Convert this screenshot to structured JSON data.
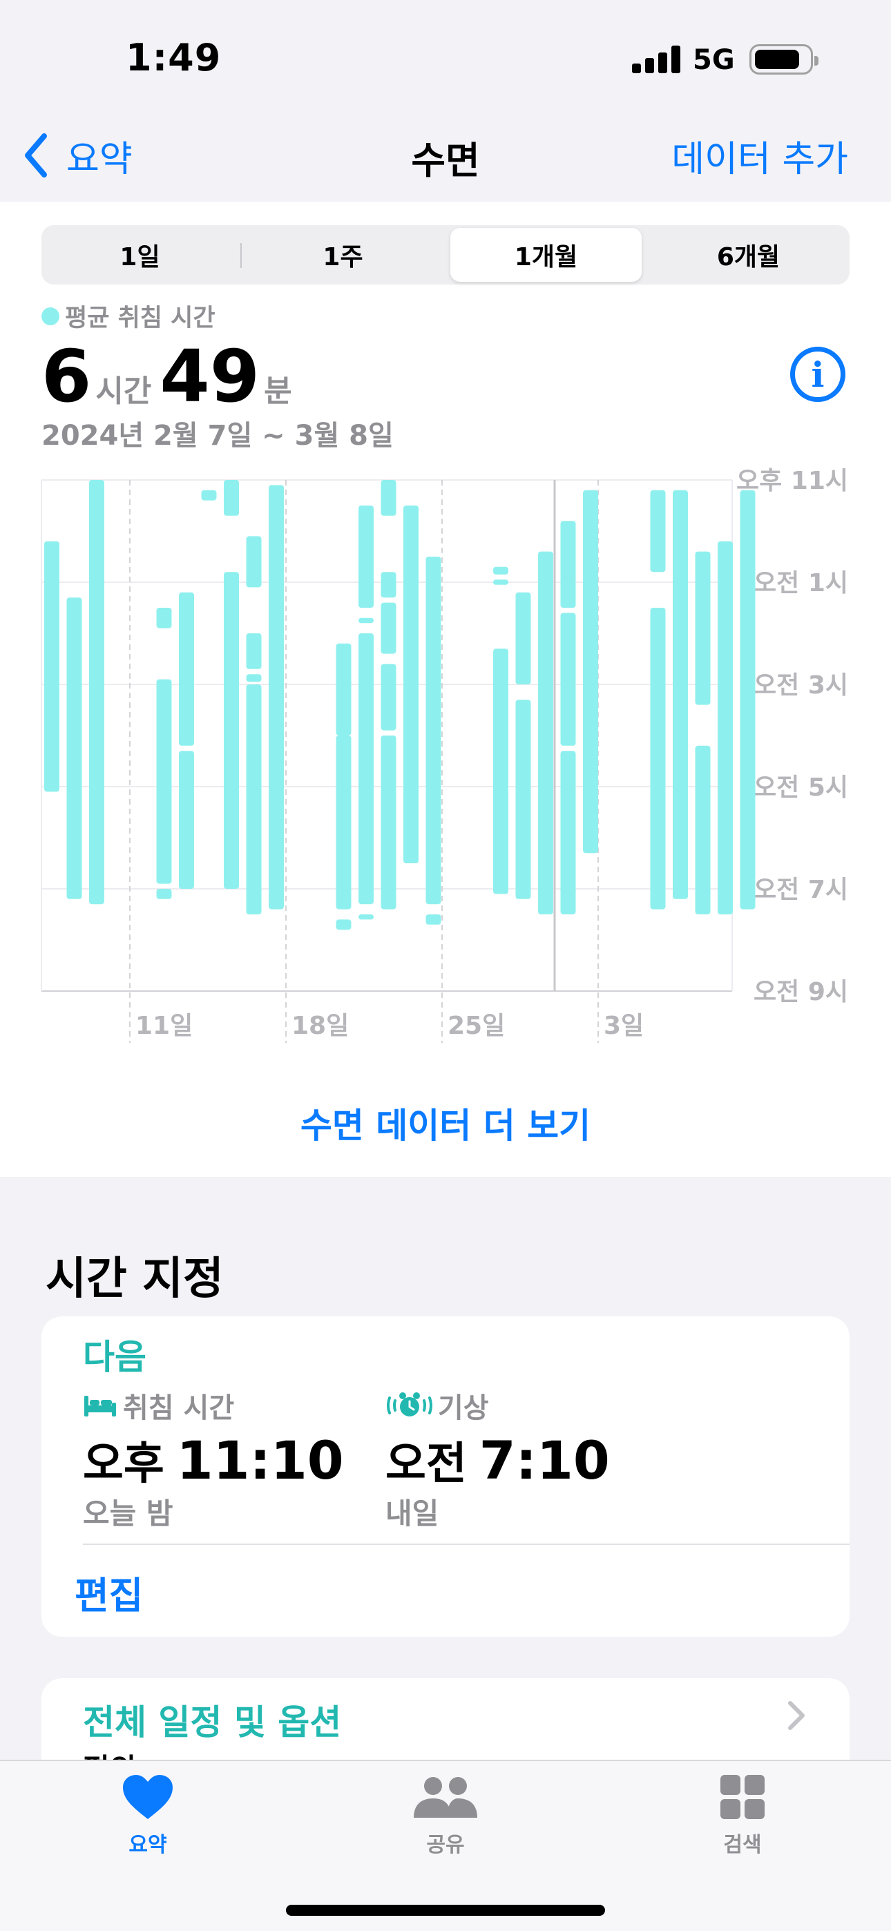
{
  "status_bar": {
    "time": "1:49",
    "network": "5G"
  },
  "nav": {
    "back_label": "요약",
    "title": "수면",
    "add_label": "데이터 추가"
  },
  "segments": [
    "1일",
    "1주",
    "1개월",
    "6개월"
  ],
  "selected_segment": "1개월",
  "summary": {
    "legend": "평균 취침 시간",
    "hours": "6",
    "hours_unit": "시간",
    "minutes": "49",
    "minutes_unit": "분",
    "date_range": "2024년 2월 7일 ~ 3월 8일"
  },
  "colors": {
    "accent": "#0a7aff",
    "sleep_bar": "#8ef0ee",
    "teal_text": "#22b8b0"
  },
  "chart_data": {
    "type": "bar",
    "title": "",
    "y_axis_labels": [
      "오후 11시",
      "오전 1시",
      "오전 3시",
      "오전 5시",
      "오전 7시",
      "오전 9시"
    ],
    "x_tick_labels": [
      "11일",
      "18일",
      "25일",
      "3일"
    ],
    "ylim": [
      "오후 11시",
      "오전 9시"
    ],
    "y_unit": "hours after 오후 11시",
    "grid": true,
    "legend": "top-left",
    "days": [
      {
        "day": 0,
        "segments": [
          [
            1.2,
            6.1
          ]
        ]
      },
      {
        "day": 1,
        "segments": [
          [
            2.3,
            8.2
          ]
        ]
      },
      {
        "day": 2,
        "segments": [
          [
            0.0,
            8.3
          ]
        ]
      },
      {
        "day": 5,
        "segments": [
          [
            2.5,
            2.9
          ],
          [
            3.9,
            7.9
          ],
          [
            8.0,
            8.2
          ]
        ]
      },
      {
        "day": 6,
        "segments": [
          [
            2.2,
            5.2
          ],
          [
            5.3,
            8.0
          ]
        ]
      },
      {
        "day": 7,
        "segments": [
          [
            0.2,
            0.4
          ]
        ]
      },
      {
        "day": 8,
        "segments": [
          [
            0.0,
            0.7
          ],
          [
            1.8,
            8.0
          ]
        ]
      },
      {
        "day": 9,
        "segments": [
          [
            1.1,
            2.1
          ],
          [
            3.0,
            3.7
          ],
          [
            3.8,
            3.95
          ],
          [
            4.0,
            8.5
          ]
        ]
      },
      {
        "day": 10,
        "segments": [
          [
            0.1,
            8.4
          ]
        ]
      },
      {
        "day": 13,
        "segments": [
          [
            3.2,
            5.0
          ],
          [
            5.0,
            8.4
          ],
          [
            8.6,
            8.8
          ]
        ]
      },
      {
        "day": 14,
        "segments": [
          [
            0.5,
            2.5
          ],
          [
            2.7,
            2.8
          ],
          [
            3.0,
            8.3
          ],
          [
            8.5,
            8.6
          ]
        ]
      },
      {
        "day": 15,
        "segments": [
          [
            0.0,
            0.7
          ],
          [
            1.8,
            2.3
          ],
          [
            2.4,
            3.4
          ],
          [
            3.6,
            4.9
          ],
          [
            5.0,
            8.4
          ]
        ]
      },
      {
        "day": 16,
        "segments": [
          [
            0.5,
            7.5
          ]
        ]
      },
      {
        "day": 17,
        "segments": [
          [
            1.5,
            8.3
          ],
          [
            8.5,
            8.7
          ]
        ]
      },
      {
        "day": 20,
        "segments": [
          [
            1.7,
            1.85
          ],
          [
            1.95,
            2.05
          ]
        ]
      },
      {
        "day": 20,
        "segments": [
          [
            3.3,
            8.1
          ]
        ]
      },
      {
        "day": 21,
        "segments": [
          [
            2.2,
            4.0
          ],
          [
            4.3,
            8.2
          ]
        ]
      },
      {
        "day": 22,
        "segments": [
          [
            1.4,
            8.5
          ]
        ]
      },
      {
        "day": 23,
        "segments": [
          [
            0.8,
            2.5
          ],
          [
            2.6,
            5.2
          ],
          [
            5.3,
            8.5
          ]
        ]
      },
      {
        "day": 24,
        "segments": [
          [
            0.2,
            7.3
          ]
        ]
      },
      {
        "day": 27,
        "segments": [
          [
            0.2,
            1.8
          ],
          [
            2.5,
            8.4
          ]
        ]
      },
      {
        "day": 28,
        "segments": [
          [
            0.2,
            8.2
          ]
        ]
      },
      {
        "day": 29,
        "segments": [
          [
            1.4,
            4.4
          ],
          [
            5.2,
            8.5
          ]
        ]
      },
      {
        "day": 30,
        "segments": [
          [
            1.2,
            8.5
          ]
        ]
      },
      {
        "day": 31,
        "segments": [
          [
            0.2,
            8.4
          ]
        ]
      }
    ]
  },
  "more_data_label": "수면 데이터 더 보기",
  "schedule": {
    "title": "시간 지정",
    "next_label": "다음",
    "bedtime": {
      "label": "취침 시간",
      "ampm": "오후",
      "time": "11:10",
      "sub": "오늘 밤"
    },
    "wake": {
      "label": "기상",
      "ampm": "오전",
      "time": "7:10",
      "sub": "내일"
    },
    "edit_label": "편집"
  },
  "options": {
    "label": "전체 일정 및 옵션",
    "sub": "편의"
  },
  "tabs": [
    {
      "label": "요약",
      "icon": "heart-icon",
      "active": true
    },
    {
      "label": "공유",
      "icon": "people-icon",
      "active": false
    },
    {
      "label": "검색",
      "icon": "grid-icon",
      "active": false
    }
  ]
}
